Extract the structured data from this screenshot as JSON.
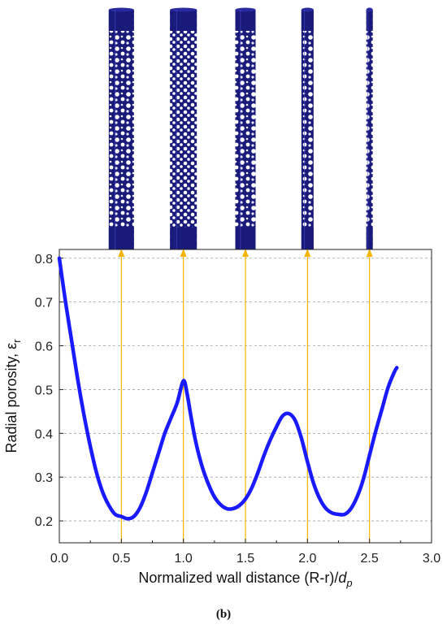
{
  "caption": "(b)",
  "chart_data": {
    "type": "line",
    "xlabel": "Normalized wall distance (R-r)/",
    "xlabel_var": "d",
    "xlabel_sub": "p",
    "ylabel": "Radial porosity, ε",
    "ylabel_sub": "r",
    "xlim": [
      0.0,
      3.0
    ],
    "ylim": [
      0.15,
      0.82
    ],
    "xticks": [
      "0.0",
      "0.5",
      "1.0",
      "1.5",
      "2.0",
      "2.5",
      "3.0"
    ],
    "yticks": [
      "0.2",
      "0.3",
      "0.4",
      "0.5",
      "0.6",
      "0.7",
      "0.8"
    ],
    "ygrid_values": [
      0.2,
      0.3,
      0.4,
      0.5,
      0.6,
      0.7,
      0.8
    ],
    "grid": "horizontal dashed",
    "line_color": "#1a1aff",
    "marker_color": "#f4b400",
    "column_color": "#1a1a7a",
    "marker_x": [
      0.5,
      1.0,
      1.5,
      2.0,
      2.5
    ],
    "series": [
      {
        "x": [
          0.0,
          0.05,
          0.1,
          0.15,
          0.2,
          0.25,
          0.3,
          0.35,
          0.4,
          0.45,
          0.5,
          0.55,
          0.6,
          0.65,
          0.7,
          0.75,
          0.8,
          0.85,
          0.9,
          0.95,
          1.0,
          1.03,
          1.06,
          1.1,
          1.15,
          1.2,
          1.25,
          1.3,
          1.35,
          1.4,
          1.45,
          1.5,
          1.55,
          1.6,
          1.65,
          1.7,
          1.75,
          1.8,
          1.85,
          1.9,
          1.95,
          2.0,
          2.05,
          2.1,
          2.15,
          2.2,
          2.25,
          2.3,
          2.35,
          2.4,
          2.45,
          2.5,
          2.55,
          2.6,
          2.65,
          2.7,
          2.72
        ],
        "y": [
          0.8,
          0.7,
          0.61,
          0.52,
          0.44,
          0.37,
          0.31,
          0.265,
          0.235,
          0.215,
          0.21,
          0.205,
          0.21,
          0.23,
          0.265,
          0.31,
          0.355,
          0.4,
          0.435,
          0.47,
          0.52,
          0.49,
          0.44,
          0.38,
          0.325,
          0.285,
          0.255,
          0.237,
          0.228,
          0.228,
          0.235,
          0.25,
          0.275,
          0.31,
          0.35,
          0.385,
          0.415,
          0.44,
          0.445,
          0.43,
          0.39,
          0.335,
          0.285,
          0.25,
          0.228,
          0.218,
          0.215,
          0.215,
          0.228,
          0.255,
          0.295,
          0.35,
          0.405,
          0.455,
          0.505,
          0.54,
          0.55
        ]
      }
    ]
  }
}
